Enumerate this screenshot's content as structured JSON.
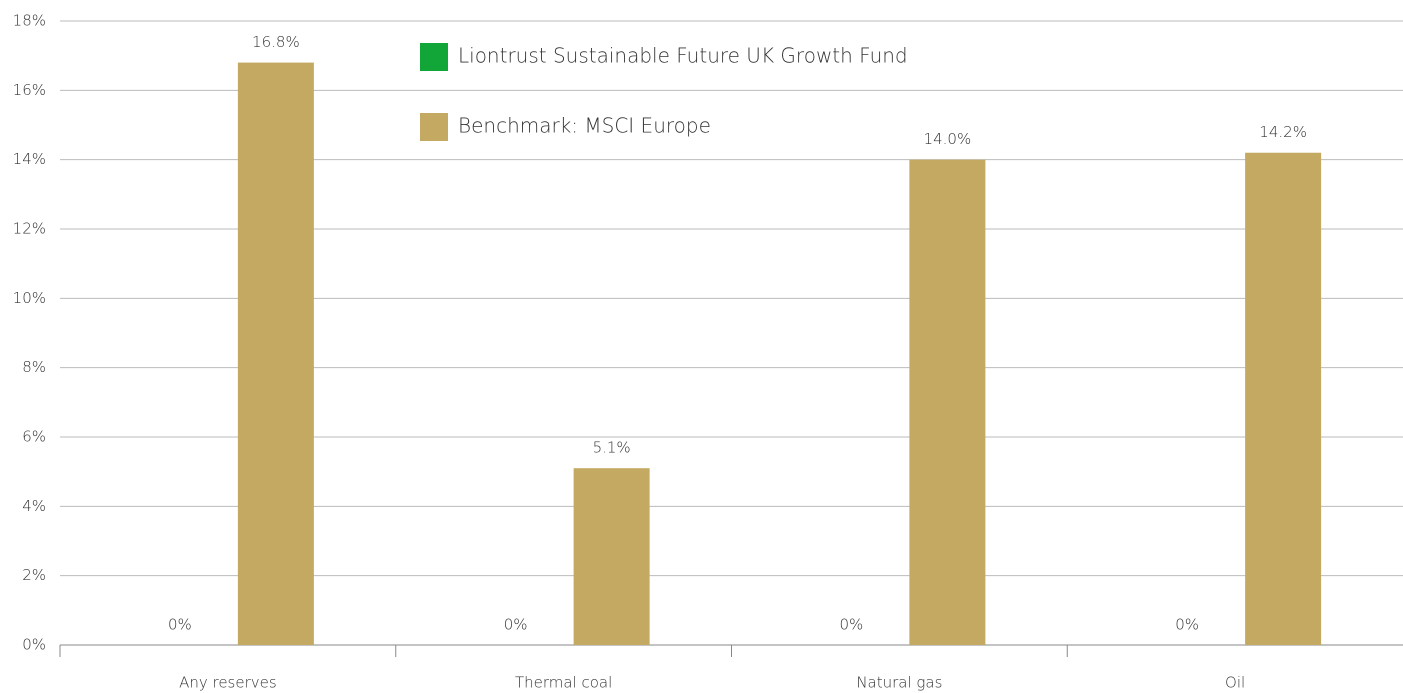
{
  "chart_data": {
    "type": "bar",
    "categories": [
      "Any reserves",
      "Thermal coal",
      "Natural gas",
      "Oil"
    ],
    "series": [
      {
        "name": "Liontrust Sustainable Future UK Growth Fund",
        "color": "#12a537",
        "values": [
          0,
          0,
          0,
          0
        ],
        "value_labels": [
          "0%",
          "0%",
          "0%",
          "0%"
        ]
      },
      {
        "name": "Benchmark: MSCI Europe",
        "color": "#c3a961",
        "values": [
          16.8,
          5.1,
          14.0,
          14.2
        ],
        "value_labels": [
          "16.8%",
          "5.1%",
          "14.0%",
          "14.2%"
        ]
      }
    ],
    "ylim": [
      0,
      18
    ],
    "yticks": [
      {
        "value": 0,
        "label": "0%"
      },
      {
        "value": 2,
        "label": "2%"
      },
      {
        "value": 4,
        "label": "4%"
      },
      {
        "value": 6,
        "label": "6%"
      },
      {
        "value": 8,
        "label": "8%"
      },
      {
        "value": 10,
        "label": "10%"
      },
      {
        "value": 12,
        "label": "12%"
      },
      {
        "value": 14,
        "label": "14%"
      },
      {
        "value": 16,
        "label": "16%"
      },
      {
        "value": 18,
        "label": "18%"
      }
    ],
    "grid": true
  }
}
